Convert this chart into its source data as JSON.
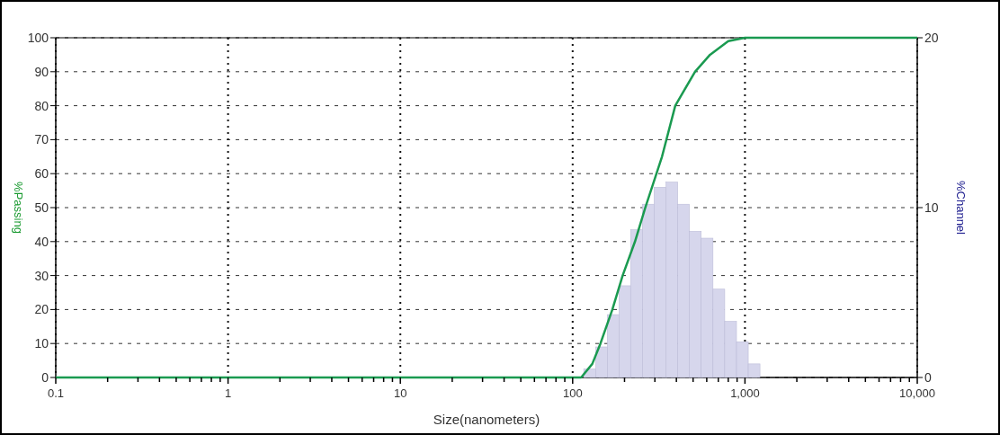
{
  "chart_data": {
    "type": "line",
    "xlabel": "Size(nanometers)",
    "ylabel": "%Passing",
    "y2label": "%Channel",
    "log": "x",
    "grid": true,
    "xlim": [
      0.1,
      10000
    ],
    "xticks": [
      {
        "value": 0.1,
        "label": "0.1"
      },
      {
        "value": 0.2,
        "label": null
      },
      {
        "value": 0.3,
        "label": null
      },
      {
        "value": 0.4,
        "label": null
      },
      {
        "value": 0.5,
        "label": null
      },
      {
        "value": 0.6,
        "label": null
      },
      {
        "value": 0.7,
        "label": null
      },
      {
        "value": 0.8,
        "label": null
      },
      {
        "value": 0.9,
        "label": null
      },
      {
        "value": 1,
        "label": "1"
      },
      {
        "value": 2,
        "label": null
      },
      {
        "value": 3,
        "label": null
      },
      {
        "value": 4,
        "label": null
      },
      {
        "value": 5,
        "label": null
      },
      {
        "value": 6,
        "label": null
      },
      {
        "value": 7,
        "label": null
      },
      {
        "value": 8,
        "label": null
      },
      {
        "value": 9,
        "label": null
      },
      {
        "value": 10,
        "label": "10"
      },
      {
        "value": 20,
        "label": null
      },
      {
        "value": 30,
        "label": null
      },
      {
        "value": 40,
        "label": null
      },
      {
        "value": 50,
        "label": null
      },
      {
        "value": 60,
        "label": null
      },
      {
        "value": 70,
        "label": null
      },
      {
        "value": 80,
        "label": null
      },
      {
        "value": 90,
        "label": null
      },
      {
        "value": 100,
        "label": "100"
      },
      {
        "value": 200,
        "label": null
      },
      {
        "value": 300,
        "label": null
      },
      {
        "value": 400,
        "label": null
      },
      {
        "value": 500,
        "label": null
      },
      {
        "value": 600,
        "label": null
      },
      {
        "value": 700,
        "label": null
      },
      {
        "value": 800,
        "label": null
      },
      {
        "value": 900,
        "label": null
      },
      {
        "value": 1000,
        "label": "1,000"
      },
      {
        "value": 2000,
        "label": null
      },
      {
        "value": 3000,
        "label": null
      },
      {
        "value": 4000,
        "label": null
      },
      {
        "value": 5000,
        "label": null
      },
      {
        "value": 6000,
        "label": null
      },
      {
        "value": 7000,
        "label": null
      },
      {
        "value": 8000,
        "label": null
      },
      {
        "value": 9000,
        "label": null
      },
      {
        "value": 10000,
        "label": "10,000"
      }
    ],
    "ylim": [
      0,
      100
    ],
    "yticks": [
      0,
      10,
      20,
      30,
      40,
      50,
      60,
      70,
      80,
      90,
      100
    ],
    "y2lim": [
      0,
      20
    ],
    "y2ticks": [
      0,
      10,
      20
    ],
    "series": [
      {
        "type": "histogram",
        "axis": "y2",
        "color": "#d6d6ec",
        "bins": [
          116,
          136,
          159,
          186,
          217,
          254,
          297,
          348,
          407,
          476,
          557,
          652,
          763,
          893,
          1045,
          1222
        ],
        "values": [
          0.5,
          1.8,
          3.7,
          5.4,
          8.7,
          10.2,
          11.2,
          11.5,
          10.2,
          8.6,
          8.2,
          5.2,
          3.3,
          2.1,
          0.8
        ]
      },
      {
        "color": "#1a9a50",
        "x": [
          0.1,
          112,
          130,
          145,
          170,
          195,
          230,
          264,
          330,
          394,
          513,
          627,
          800,
          1000,
          1100,
          10000
        ],
        "values": [
          0,
          0,
          4,
          10,
          20,
          30,
          40,
          50,
          65,
          80,
          90,
          95,
          99,
          100,
          100,
          100
        ]
      }
    ]
  }
}
